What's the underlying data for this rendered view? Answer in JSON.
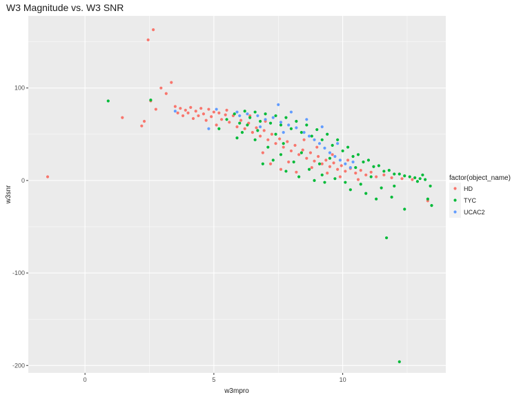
{
  "chart_data": {
    "type": "scatter",
    "title": "W3 Magnitude vs. W3 SNR",
    "xlabel": "w3mpro",
    "ylabel": "w3snr",
    "xlim": [
      -2.2,
      14.0
    ],
    "ylim": [
      -208,
      178
    ],
    "x_ticks": [
      0,
      5,
      10
    ],
    "x_minor": [
      -2.5,
      2.5,
      7.5,
      12.5
    ],
    "y_ticks": [
      -200,
      -100,
      0,
      100
    ],
    "y_minor": [
      -150,
      -50,
      50,
      150
    ],
    "grid": true,
    "legend": {
      "title": "factor(object_name)",
      "position": "right",
      "entries": [
        "HD",
        "TYC",
        "UCAC2"
      ]
    },
    "colors": {
      "HD": "#F8766D",
      "TYC": "#00BA38",
      "UCAC2": "#619CFF",
      "panel": "#EBEBEB",
      "grid": "#FFFFFF"
    },
    "series": [
      {
        "name": "HD",
        "points": [
          [
            -1.45,
            4
          ],
          [
            1.45,
            68
          ],
          [
            2.2,
            59
          ],
          [
            2.3,
            64
          ],
          [
            2.45,
            152
          ],
          [
            2.65,
            163
          ],
          [
            2.55,
            86
          ],
          [
            2.75,
            77
          ],
          [
            2.95,
            100
          ],
          [
            3.15,
            94
          ],
          [
            3.35,
            106
          ],
          [
            3.5,
            80
          ],
          [
            3.6,
            73
          ],
          [
            3.7,
            78
          ],
          [
            3.8,
            70
          ],
          [
            3.9,
            76
          ],
          [
            4.0,
            73
          ],
          [
            4.1,
            79
          ],
          [
            4.2,
            67
          ],
          [
            4.3,
            75
          ],
          [
            4.4,
            70
          ],
          [
            4.5,
            78
          ],
          [
            4.6,
            72
          ],
          [
            4.7,
            65
          ],
          [
            4.8,
            77
          ],
          [
            4.9,
            69
          ],
          [
            5.0,
            74
          ],
          [
            5.1,
            60
          ],
          [
            5.2,
            73
          ],
          [
            5.3,
            66
          ],
          [
            5.45,
            71
          ],
          [
            5.6,
            63
          ],
          [
            5.75,
            70
          ],
          [
            5.9,
            58
          ],
          [
            6.05,
            65
          ],
          [
            6.2,
            56
          ],
          [
            6.35,
            62
          ],
          [
            6.5,
            52
          ],
          [
            6.65,
            57
          ],
          [
            6.8,
            48
          ],
          [
            6.95,
            54
          ],
          [
            7.1,
            44
          ],
          [
            7.25,
            50
          ],
          [
            7.4,
            40
          ],
          [
            7.55,
            45
          ],
          [
            7.7,
            36
          ],
          [
            7.85,
            42
          ],
          [
            8.0,
            32
          ],
          [
            8.15,
            38
          ],
          [
            8.3,
            28
          ],
          [
            8.45,
            33
          ],
          [
            8.6,
            24
          ],
          [
            8.75,
            30
          ],
          [
            8.9,
            21
          ],
          [
            9.05,
            26
          ],
          [
            9.2,
            18
          ],
          [
            9.35,
            22
          ],
          [
            9.5,
            15
          ],
          [
            9.65,
            19
          ],
          [
            9.8,
            12
          ],
          [
            9.95,
            16
          ],
          [
            10.1,
            10
          ],
          [
            10.3,
            13
          ],
          [
            10.5,
            8
          ],
          [
            10.7,
            11
          ],
          [
            10.9,
            6
          ],
          [
            11.1,
            9
          ],
          [
            11.3,
            4
          ],
          [
            11.6,
            6
          ],
          [
            11.9,
            3
          ],
          [
            12.3,
            2
          ],
          [
            12.7,
            1
          ],
          [
            13.3,
            -22
          ],
          [
            7.2,
            18
          ],
          [
            7.6,
            12
          ],
          [
            8.2,
            9
          ],
          [
            8.8,
            14
          ],
          [
            9.4,
            8
          ],
          [
            6.9,
            30
          ],
          [
            7.9,
            20
          ],
          [
            9.9,
            4
          ],
          [
            10.6,
            1
          ],
          [
            8.5,
            44
          ],
          [
            9.0,
            36
          ],
          [
            9.6,
            28
          ],
          [
            10.2,
            22
          ],
          [
            5.5,
            76
          ],
          [
            6.4,
            70
          ],
          [
            7.0,
            64
          ]
        ]
      },
      {
        "name": "TYC",
        "points": [
          [
            0.9,
            86
          ],
          [
            2.55,
            87
          ],
          [
            5.2,
            56
          ],
          [
            5.5,
            66
          ],
          [
            5.8,
            72
          ],
          [
            6.0,
            62
          ],
          [
            6.2,
            75
          ],
          [
            6.4,
            68
          ],
          [
            6.6,
            74
          ],
          [
            6.8,
            64
          ],
          [
            7.0,
            72
          ],
          [
            7.2,
            62
          ],
          [
            7.4,
            70
          ],
          [
            7.6,
            60
          ],
          [
            7.8,
            68
          ],
          [
            8.0,
            56
          ],
          [
            8.2,
            64
          ],
          [
            8.4,
            52
          ],
          [
            8.6,
            60
          ],
          [
            8.8,
            48
          ],
          [
            9.0,
            55
          ],
          [
            9.2,
            44
          ],
          [
            9.4,
            50
          ],
          [
            9.6,
            38
          ],
          [
            9.8,
            44
          ],
          [
            10.0,
            32
          ],
          [
            10.2,
            36
          ],
          [
            10.4,
            26
          ],
          [
            10.6,
            28
          ],
          [
            10.8,
            20
          ],
          [
            11.0,
            22
          ],
          [
            11.2,
            15
          ],
          [
            11.4,
            16
          ],
          [
            11.6,
            10
          ],
          [
            11.8,
            11
          ],
          [
            12.0,
            7
          ],
          [
            12.2,
            7
          ],
          [
            12.4,
            5
          ],
          [
            12.6,
            4
          ],
          [
            12.8,
            3
          ],
          [
            13.0,
            2
          ],
          [
            13.2,
            1
          ],
          [
            13.4,
            -6
          ],
          [
            13.3,
            -20
          ],
          [
            13.45,
            -27
          ],
          [
            12.4,
            -31
          ],
          [
            11.9,
            -18
          ],
          [
            11.5,
            -8
          ],
          [
            11.7,
            -62
          ],
          [
            12.2,
            -196
          ],
          [
            10.7,
            -4
          ],
          [
            10.1,
            -2
          ],
          [
            9.7,
            2
          ],
          [
            9.2,
            6
          ],
          [
            8.7,
            12
          ],
          [
            8.1,
            20
          ],
          [
            7.6,
            28
          ],
          [
            7.1,
            36
          ],
          [
            6.6,
            44
          ],
          [
            6.1,
            52
          ],
          [
            5.9,
            46
          ],
          [
            6.9,
            18
          ],
          [
            7.3,
            22
          ],
          [
            7.8,
            10
          ],
          [
            8.3,
            4
          ],
          [
            8.9,
            0
          ],
          [
            9.3,
            -2
          ],
          [
            10.3,
            -10
          ],
          [
            10.9,
            -14
          ],
          [
            11.3,
            -20
          ],
          [
            12.0,
            -6
          ],
          [
            12.9,
            -1
          ],
          [
            13.1,
            6
          ],
          [
            6.3,
            60
          ],
          [
            7.7,
            40
          ],
          [
            9.5,
            24
          ],
          [
            10.5,
            14
          ],
          [
            11.1,
            4
          ],
          [
            8.4,
            30
          ],
          [
            9.1,
            18
          ],
          [
            7.4,
            50
          ],
          [
            6.7,
            54
          ]
        ]
      },
      {
        "name": "UCAC2",
        "points": [
          [
            3.5,
            75
          ],
          [
            4.8,
            56
          ],
          [
            5.1,
            77
          ],
          [
            5.9,
            74
          ],
          [
            6.3,
            72
          ],
          [
            6.7,
            70
          ],
          [
            7.0,
            66
          ],
          [
            7.3,
            68
          ],
          [
            7.6,
            63
          ],
          [
            7.9,
            60
          ],
          [
            8.2,
            57
          ],
          [
            8.5,
            52
          ],
          [
            8.7,
            48
          ],
          [
            8.9,
            44
          ],
          [
            9.1,
            40
          ],
          [
            9.3,
            35
          ],
          [
            9.5,
            30
          ],
          [
            9.7,
            26
          ],
          [
            9.9,
            22
          ],
          [
            10.1,
            18
          ],
          [
            10.3,
            14
          ],
          [
            7.5,
            82
          ],
          [
            8.0,
            74
          ],
          [
            8.6,
            66
          ],
          [
            9.2,
            58
          ],
          [
            9.8,
            40
          ],
          [
            10.4,
            20
          ],
          [
            6.0,
            70
          ],
          [
            6.8,
            58
          ],
          [
            7.7,
            52
          ]
        ]
      }
    ]
  }
}
